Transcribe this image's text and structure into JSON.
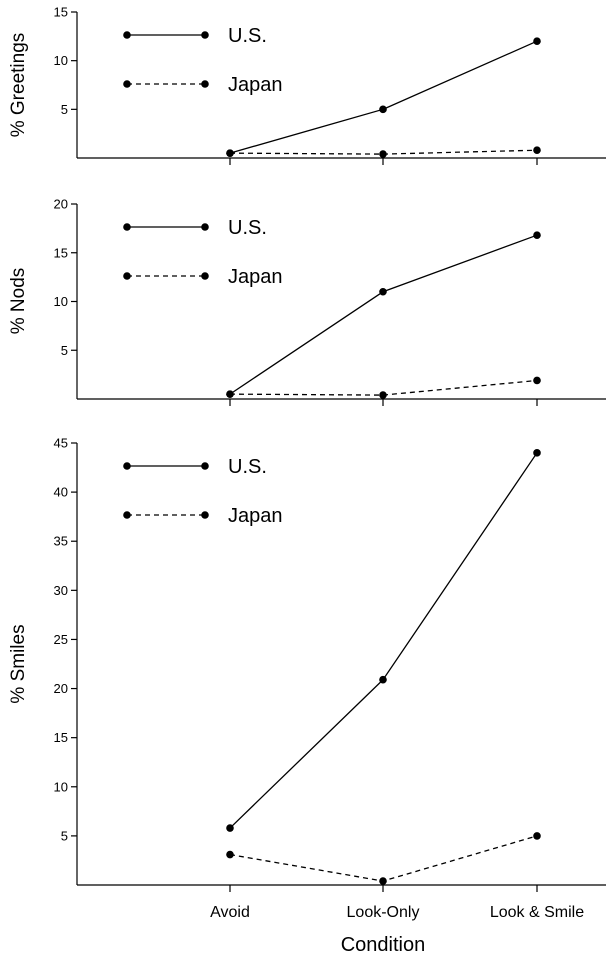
{
  "chart_data": [
    {
      "type": "line",
      "ylabel": "% Greetings",
      "ylim": [
        0,
        15
      ],
      "yticks": [
        5,
        10,
        15
      ],
      "categories": [
        "Avoid",
        "Look-Only",
        "Look & Smile"
      ],
      "series": [
        {
          "name": "U.S.",
          "style": "solid",
          "values": [
            0.5,
            5,
            12
          ]
        },
        {
          "name": "Japan",
          "style": "dashed",
          "values": [
            0.5,
            0.4,
            0.8
          ]
        }
      ],
      "legend": "top-left"
    },
    {
      "type": "line",
      "ylabel": "% Nods",
      "ylim": [
        0,
        20
      ],
      "yticks": [
        5,
        10,
        15,
        20
      ],
      "categories": [
        "Avoid",
        "Look-Only",
        "Look & Smile"
      ],
      "series": [
        {
          "name": "U.S.",
          "style": "solid",
          "values": [
            0.5,
            11,
            16.8
          ]
        },
        {
          "name": "Japan",
          "style": "dashed",
          "values": [
            0.5,
            0.4,
            1.9
          ]
        }
      ],
      "legend": "top-left"
    },
    {
      "type": "line",
      "ylabel": "% Smiles",
      "xlabel": "Condition",
      "ylim": [
        0,
        45
      ],
      "yticks": [
        5,
        10,
        15,
        20,
        25,
        30,
        35,
        40,
        45
      ],
      "categories": [
        "Avoid",
        "Look-Only",
        "Look & Smile"
      ],
      "series": [
        {
          "name": "U.S.",
          "style": "solid",
          "values": [
            5.8,
            20.9,
            44
          ]
        },
        {
          "name": "Japan",
          "style": "dashed",
          "values": [
            3.1,
            0.4,
            5
          ]
        }
      ],
      "legend": "top-left"
    }
  ]
}
